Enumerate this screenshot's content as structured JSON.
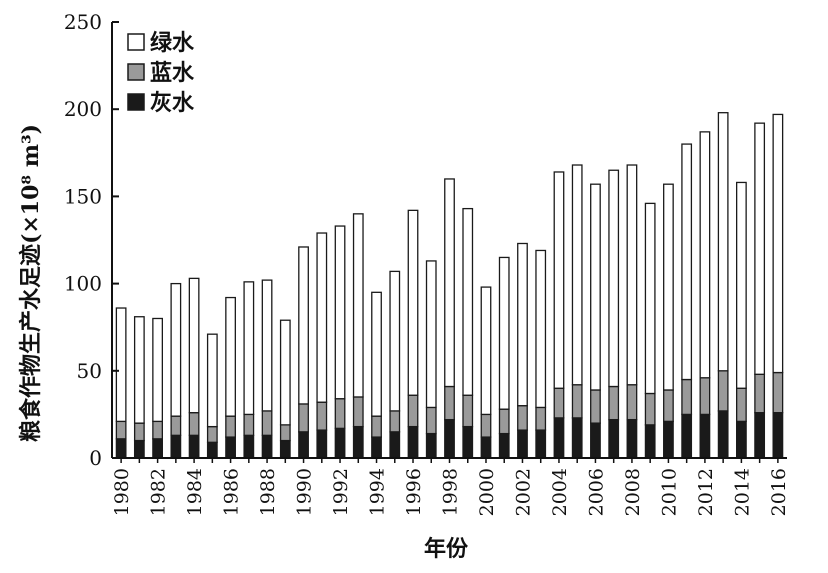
{
  "chart_data": {
    "type": "bar",
    "stacked": true,
    "title": "",
    "xlabel": "年份",
    "ylabel": "粮食作物生产水足迹(×10⁸ m³)",
    "ylim": [
      0,
      250
    ],
    "yticks": [
      0,
      50,
      100,
      150,
      200,
      250
    ],
    "grid": false,
    "legend_position": "top-left",
    "categories": [
      "1980",
      "1981",
      "1982",
      "1983",
      "1984",
      "1985",
      "1986",
      "1987",
      "1988",
      "1989",
      "1990",
      "1991",
      "1992",
      "1993",
      "1994",
      "1995",
      "1996",
      "1997",
      "1998",
      "1999",
      "2000",
      "2001",
      "2002",
      "2003",
      "2004",
      "2005",
      "2006",
      "2007",
      "2008",
      "2009",
      "2010",
      "2011",
      "2012",
      "2013",
      "2014",
      "2015",
      "2016"
    ],
    "xtick_labels": [
      "1980",
      "1982",
      "1984",
      "1986",
      "1988",
      "1990",
      "1992",
      "1994",
      "1996",
      "1998",
      "2000",
      "2002",
      "2004",
      "2006",
      "2008",
      "2010",
      "2012",
      "2014",
      "2016"
    ],
    "series": [
      {
        "name": "灰水",
        "color": "#1a1a1a",
        "values": [
          11,
          10,
          11,
          13,
          13,
          9,
          12,
          13,
          13,
          10,
          15,
          16,
          17,
          18,
          12,
          15,
          18,
          14,
          22,
          18,
          12,
          14,
          16,
          16,
          23,
          23,
          20,
          22,
          22,
          19,
          21,
          25,
          25,
          27,
          21,
          26,
          26
        ]
      },
      {
        "name": "蓝水",
        "color": "#9a9a9a",
        "values": [
          10,
          10,
          10,
          11,
          13,
          9,
          12,
          12,
          14,
          9,
          16,
          16,
          17,
          17,
          12,
          12,
          18,
          15,
          19,
          18,
          13,
          14,
          14,
          13,
          17,
          19,
          19,
          19,
          20,
          18,
          18,
          20,
          21,
          23,
          19,
          22,
          23
        ]
      },
      {
        "name": "绿水",
        "color": "#ffffff",
        "values": [
          65,
          61,
          59,
          76,
          77,
          53,
          68,
          76,
          75,
          60,
          90,
          97,
          99,
          105,
          71,
          80,
          106,
          84,
          119,
          107,
          73,
          87,
          93,
          90,
          124,
          126,
          118,
          124,
          126,
          109,
          118,
          135,
          141,
          148,
          118,
          144,
          148
        ]
      }
    ]
  }
}
